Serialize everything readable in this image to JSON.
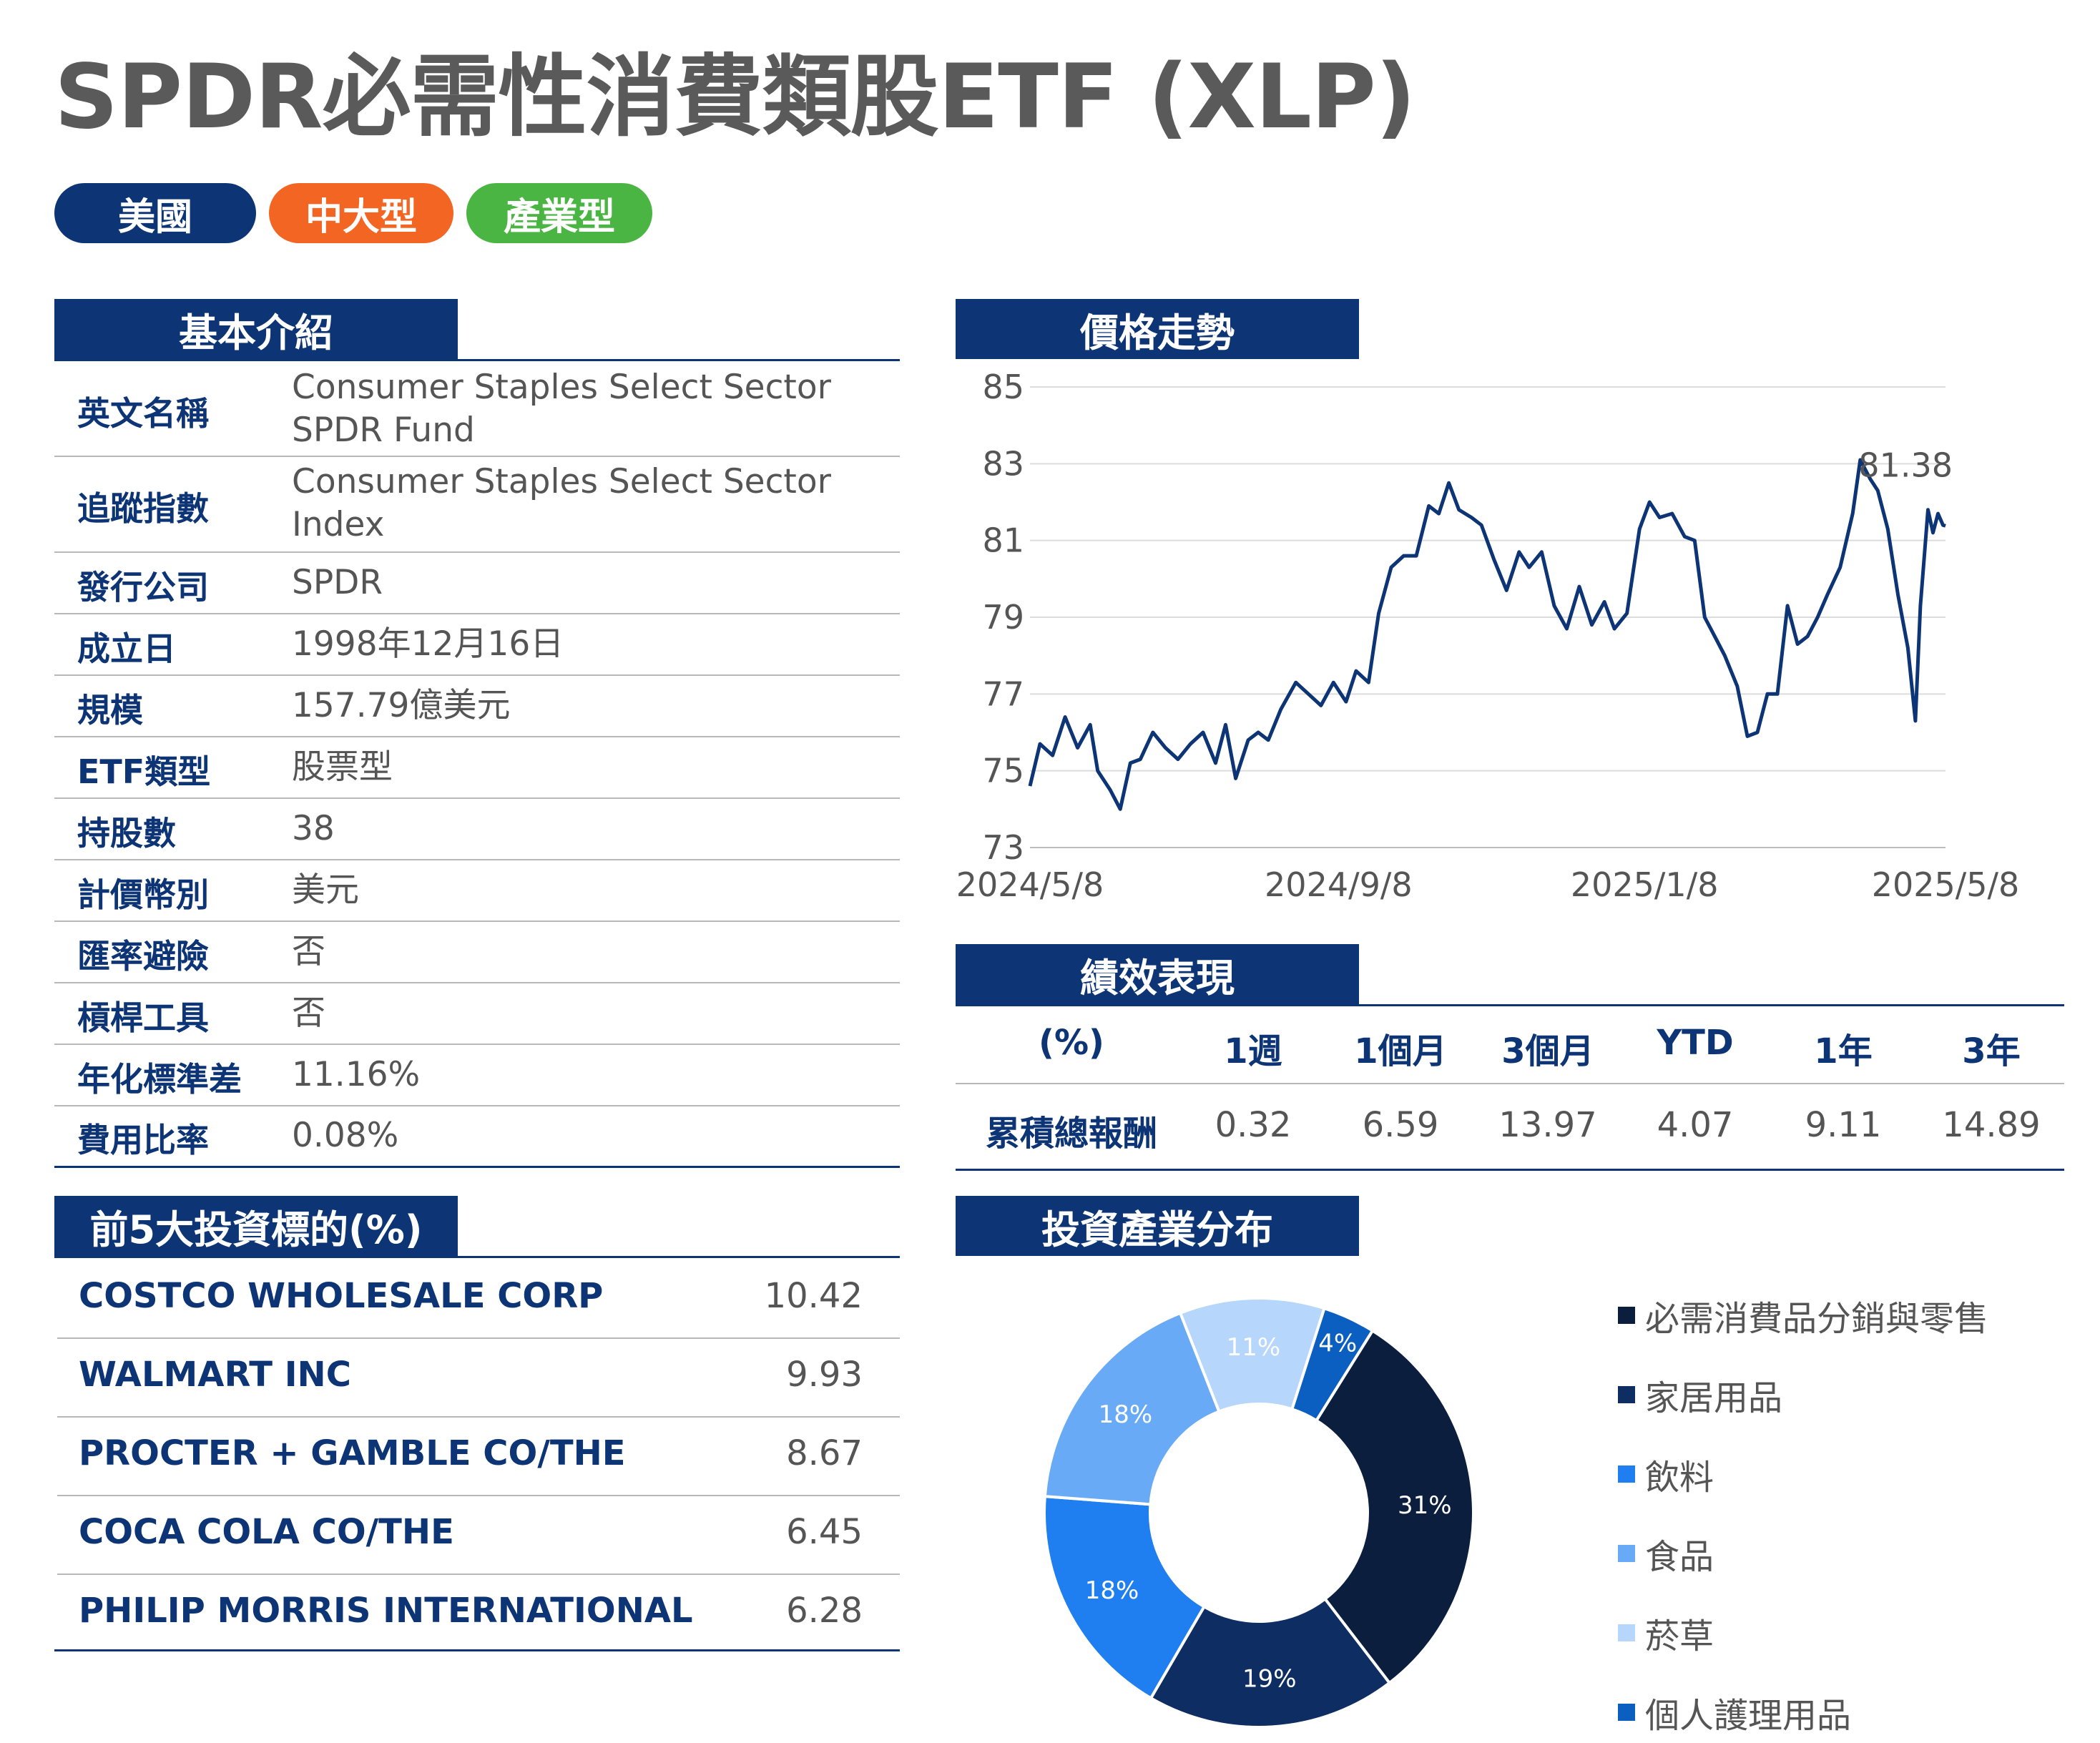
{
  "title": "SPDR必需性消費類股ETF (XLP)",
  "tags": [
    {
      "label": "美國",
      "color": "#0d3575"
    },
    {
      "label": "中大型",
      "color": "#f26522"
    },
    {
      "label": "產業型",
      "color": "#4bb543"
    }
  ],
  "basic": {
    "heading": "基本介紹",
    "rows": [
      {
        "label": "英文名稱",
        "value": "Consumer Staples Select Sector SPDR Fund"
      },
      {
        "label": "追蹤指數",
        "value": "Consumer Staples Select Sector Index"
      },
      {
        "label": "發行公司",
        "value": "SPDR"
      },
      {
        "label": "成立日",
        "value": "1998年12月16日"
      },
      {
        "label": "規模",
        "value": "157.79億美元"
      },
      {
        "label": "ETF類型",
        "value": "股票型"
      },
      {
        "label": "持股數",
        "value": "38"
      },
      {
        "label": "計價幣別",
        "value": "美元"
      },
      {
        "label": "匯率避險",
        "value": "否"
      },
      {
        "label": "槓桿工具",
        "value": "否"
      },
      {
        "label": "年化標準差",
        "value": "11.16%"
      },
      {
        "label": "費用比率",
        "value": "0.08%"
      }
    ]
  },
  "holdings": {
    "heading": "前5大投資標的(%)",
    "rows": [
      {
        "name": "COSTCO WHOLESALE CORP",
        "value": "10.42"
      },
      {
        "name": "WALMART INC",
        "value": "9.93"
      },
      {
        "name": "PROCTER + GAMBLE CO/THE",
        "value": "8.67"
      },
      {
        "name": "COCA COLA CO/THE",
        "value": "6.45"
      },
      {
        "name": "PHILIP MORRIS INTERNATIONAL",
        "value": "6.28"
      }
    ]
  },
  "price": {
    "heading": "價格走勢",
    "last_label": "81.38"
  },
  "performance": {
    "heading": "績效表現",
    "unit_label": "(%)",
    "columns": [
      "1週",
      "1個月",
      "3個月",
      "YTD",
      "1年",
      "3年"
    ],
    "row_label": "累積總報酬",
    "values": [
      "0.32",
      "6.59",
      "13.97",
      "4.07",
      "9.11",
      "14.89"
    ]
  },
  "sector": {
    "heading": "投資產業分布"
  },
  "chart_data": [
    {
      "type": "line",
      "title": "價格走勢",
      "x_ticks": [
        "2024/5/8",
        "2024/9/8",
        "2025/1/8",
        "2025/5/8"
      ],
      "y_ticks": [
        73,
        75,
        77,
        79,
        81,
        83,
        85
      ],
      "ylim": [
        73,
        85
      ],
      "xlim": [
        "2024-05-08",
        "2025-05-08"
      ],
      "grid": true,
      "annotation": "81.38",
      "series": [
        {
          "color": "#0d3575",
          "points": [
            [
              "2024-05-08",
              74.6
            ],
            [
              "2024-05-12",
              75.7
            ],
            [
              "2024-05-17",
              75.4
            ],
            [
              "2024-05-22",
              76.4
            ],
            [
              "2024-05-27",
              75.6
            ],
            [
              "2024-06-01",
              76.2
            ],
            [
              "2024-06-04",
              75.0
            ],
            [
              "2024-06-09",
              74.5
            ],
            [
              "2024-06-13",
              74.0
            ],
            [
              "2024-06-17",
              75.2
            ],
            [
              "2024-06-21",
              75.3
            ],
            [
              "2024-06-26",
              76.0
            ],
            [
              "2024-07-01",
              75.6
            ],
            [
              "2024-07-06",
              75.3
            ],
            [
              "2024-07-11",
              75.7
            ],
            [
              "2024-07-16",
              76.0
            ],
            [
              "2024-07-21",
              75.2
            ],
            [
              "2024-07-25",
              76.2
            ],
            [
              "2024-07-29",
              74.8
            ],
            [
              "2024-08-03",
              75.8
            ],
            [
              "2024-08-07",
              76.0
            ],
            [
              "2024-08-11",
              75.8
            ],
            [
              "2024-08-16",
              76.6
            ],
            [
              "2024-08-22",
              77.3
            ],
            [
              "2024-08-27",
              77.0
            ],
            [
              "2024-09-01",
              76.7
            ],
            [
              "2024-09-06",
              77.3
            ],
            [
              "2024-09-11",
              76.8
            ],
            [
              "2024-09-15",
              77.6
            ],
            [
              "2024-09-20",
              77.3
            ],
            [
              "2024-09-24",
              79.1
            ],
            [
              "2024-09-29",
              80.3
            ],
            [
              "2024-10-04",
              80.6
            ],
            [
              "2024-10-09",
              80.6
            ],
            [
              "2024-10-14",
              81.9
            ],
            [
              "2024-10-18",
              81.7
            ],
            [
              "2024-10-22",
              82.5
            ],
            [
              "2024-10-26",
              81.8
            ],
            [
              "2024-10-31",
              81.6
            ],
            [
              "2024-11-04",
              81.4
            ],
            [
              "2024-11-09",
              80.5
            ],
            [
              "2024-11-14",
              79.7
            ],
            [
              "2024-11-19",
              80.7
            ],
            [
              "2024-11-23",
              80.3
            ],
            [
              "2024-11-28",
              80.7
            ],
            [
              "2024-12-03",
              79.3
            ],
            [
              "2024-12-08",
              78.7
            ],
            [
              "2024-12-13",
              79.8
            ],
            [
              "2024-12-18",
              78.8
            ],
            [
              "2024-12-23",
              79.4
            ],
            [
              "2024-12-27",
              78.7
            ],
            [
              "2025-01-01",
              79.1
            ],
            [
              "2025-01-06",
              81.3
            ],
            [
              "2025-01-10",
              82.0
            ],
            [
              "2025-01-14",
              81.6
            ],
            [
              "2025-01-19",
              81.7
            ],
            [
              "2025-01-24",
              81.1
            ],
            [
              "2025-01-28",
              81.0
            ],
            [
              "2025-02-01",
              79.0
            ],
            [
              "2025-02-05",
              78.5
            ],
            [
              "2025-02-09",
              78.0
            ],
            [
              "2025-02-14",
              77.2
            ],
            [
              "2025-02-18",
              75.9
            ],
            [
              "2025-02-22",
              76.0
            ],
            [
              "2025-02-26",
              77.0
            ],
            [
              "2025-03-02",
              77.0
            ],
            [
              "2025-03-06",
              79.3
            ],
            [
              "2025-03-10",
              78.3
            ],
            [
              "2025-03-14",
              78.5
            ],
            [
              "2025-03-18",
              79.0
            ],
            [
              "2025-03-22",
              79.6
            ],
            [
              "2025-03-27",
              80.3
            ],
            [
              "2025-04-01",
              81.7
            ],
            [
              "2025-04-04",
              83.1
            ],
            [
              "2025-04-08",
              82.6
            ],
            [
              "2025-04-11",
              82.3
            ],
            [
              "2025-04-15",
              81.3
            ],
            [
              "2025-04-19",
              79.6
            ],
            [
              "2025-04-23",
              78.2
            ],
            [
              "2025-04-26",
              76.3
            ],
            [
              "2025-04-28",
              79.3
            ],
            [
              "2025-05-01",
              81.8
            ],
            [
              "2025-05-03",
              81.2
            ],
            [
              "2025-05-05",
              81.7
            ],
            [
              "2025-05-07",
              81.4
            ],
            [
              "2025-05-08",
              81.38
            ]
          ]
        }
      ]
    },
    {
      "type": "pie",
      "title": "投資產業分布",
      "donut": true,
      "legend_position": "right",
      "slices": [
        {
          "label": "必需消費品分銷與零售",
          "value": 31,
          "display": "31%",
          "color": "#0b1e3d"
        },
        {
          "label": "家居用品",
          "value": 19,
          "display": "19%",
          "color": "#0d2d63"
        },
        {
          "label": "飲料",
          "value": 18,
          "display": "18%",
          "color": "#1f7ff0"
        },
        {
          "label": "食品",
          "value": 18,
          "display": "18%",
          "color": "#68aaf5"
        },
        {
          "label": "菸草",
          "value": 11,
          "display": "11%",
          "color": "#b6d6fb"
        },
        {
          "label": "個人護理用品",
          "value": 4,
          "display": "4%",
          "color": "#0a5fc0"
        }
      ]
    }
  ]
}
